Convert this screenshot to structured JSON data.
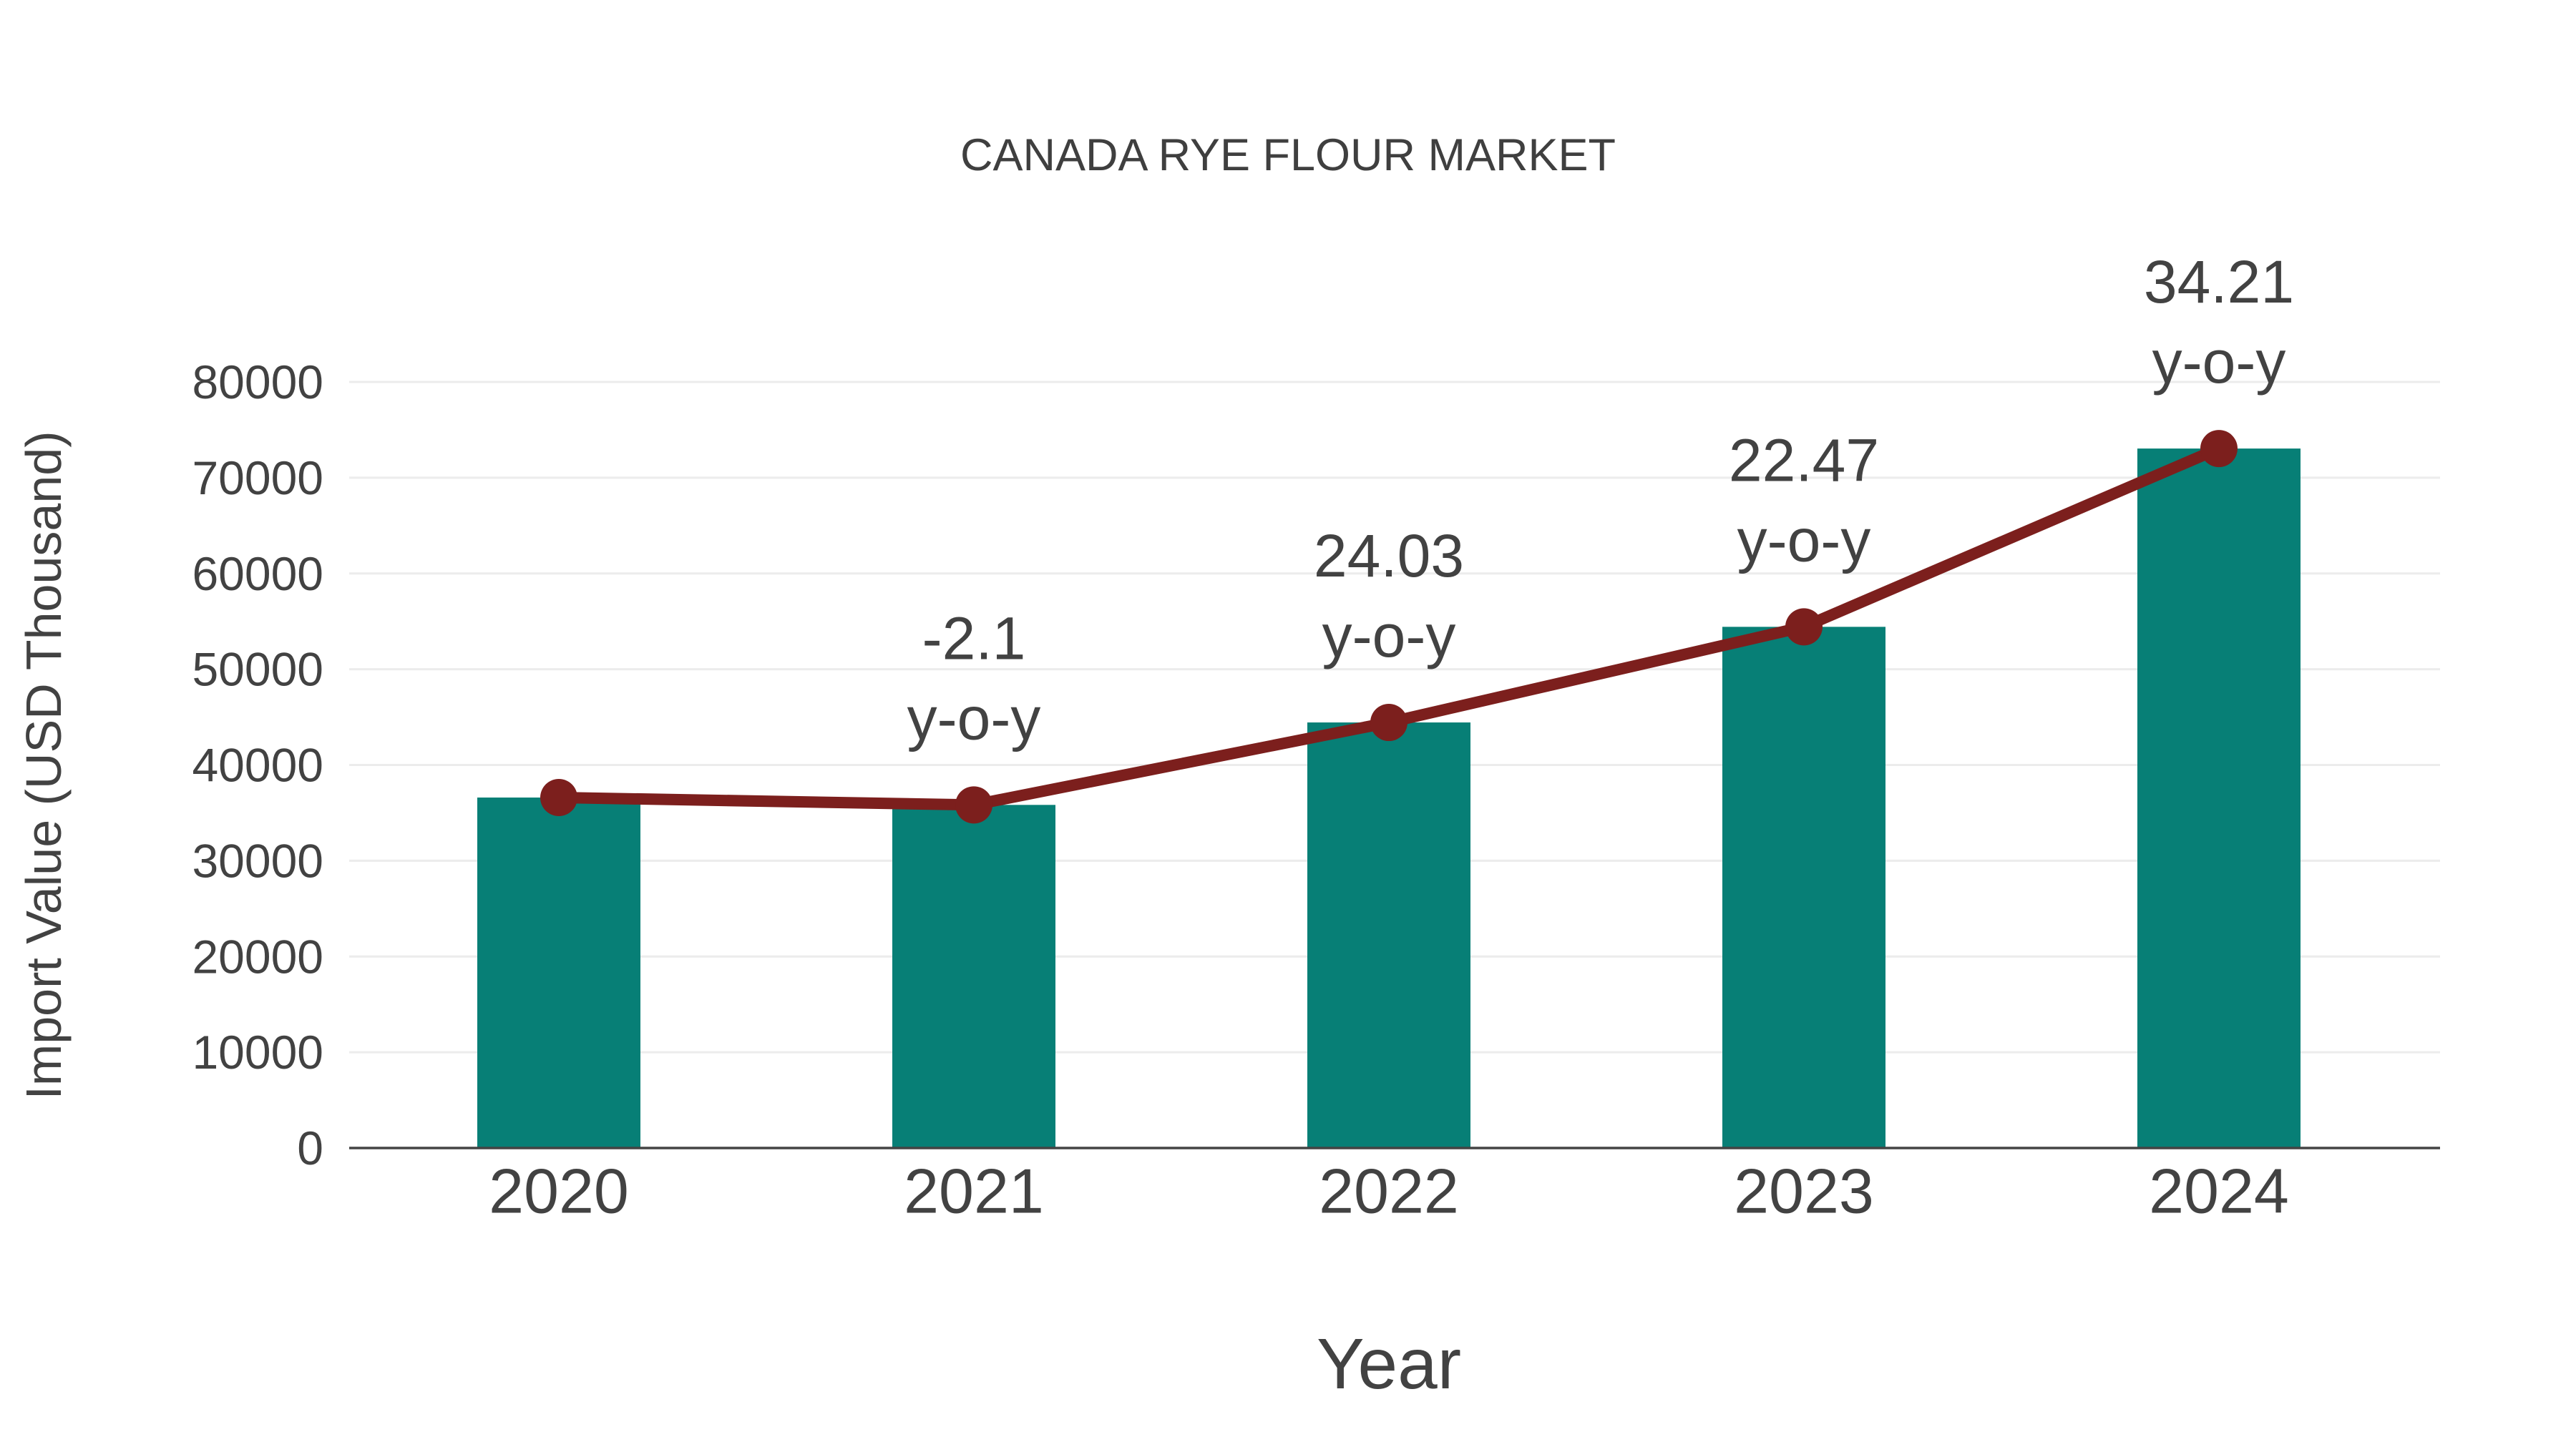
{
  "chart_data": {
    "type": "bar",
    "title": "CANADA RYE FLOUR MARKET",
    "xlabel": "Year",
    "ylabel": "Import Value (USD Thousand)",
    "categories": [
      "2020",
      "2021",
      "2022",
      "2023",
      "2024"
    ],
    "series": [
      {
        "name": "Import Value (USD Thousand)",
        "type": "bar",
        "values": [
          36600,
          35831,
          44441,
          54427,
          73047
        ]
      },
      {
        "name": "y-o-y growth line",
        "type": "line",
        "values": [
          36600,
          35831,
          44441,
          54427,
          73047
        ]
      }
    ],
    "annotations": [
      {
        "category": "2021",
        "line1": "-2.1",
        "line2": "y-o-y"
      },
      {
        "category": "2022",
        "line1": "24.03",
        "line2": "y-o-y"
      },
      {
        "category": "2023",
        "line1": "22.47",
        "line2": "y-o-y"
      },
      {
        "category": "2024",
        "line1": "34.21",
        "line2": "y-o-y"
      }
    ],
    "yticks": [
      0,
      10000,
      20000,
      30000,
      40000,
      50000,
      60000,
      70000,
      80000
    ],
    "ylim": [
      0,
      85000
    ],
    "grid": true,
    "legend": "none"
  },
  "colors": {
    "bar": "#077F76",
    "line": "#7C1F1D",
    "marker": "#7C1F1D",
    "grid": "#ECECEC",
    "axis": "#444444",
    "tick_text": "#424242",
    "title_text": "#3F3F3F"
  }
}
